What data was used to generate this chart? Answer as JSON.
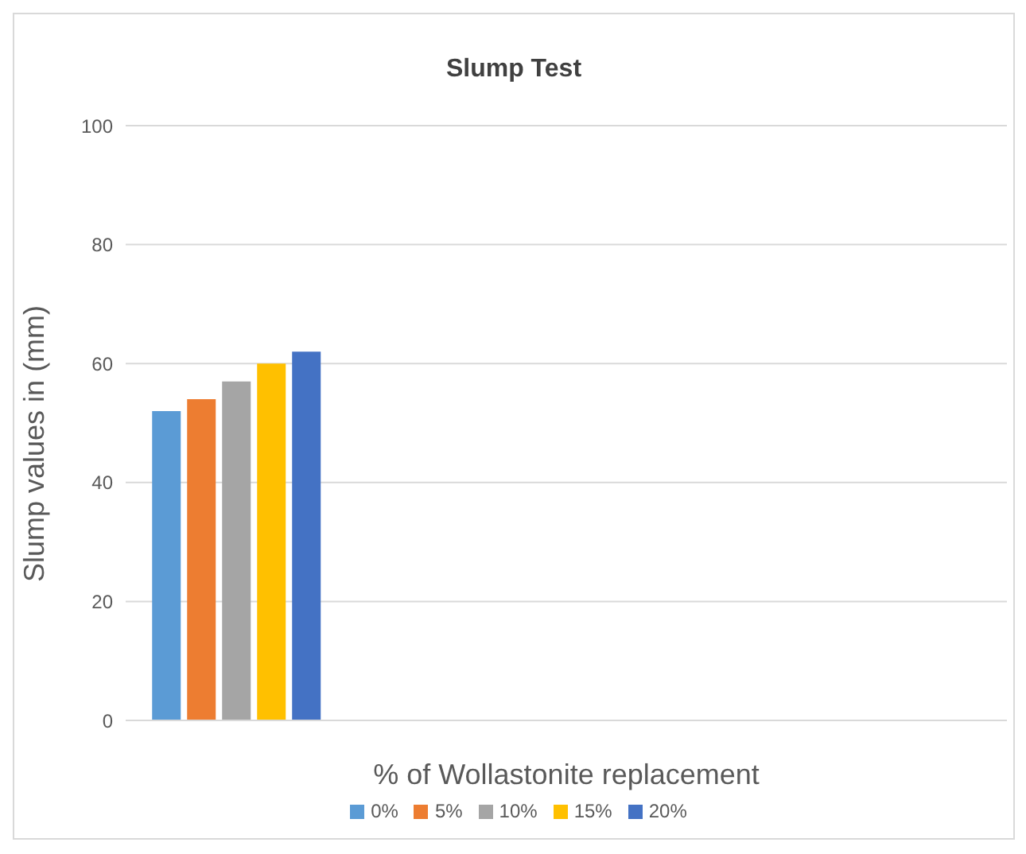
{
  "chart_data": {
    "type": "bar",
    "title": "Slump Test",
    "xlabel": "% of Wollastonite replacement",
    "ylabel": "Slump values in (mm)",
    "categories": [
      null,
      null,
      null,
      null
    ],
    "series": [
      {
        "name": "0%",
        "color": "#5b9bd5",
        "values": [
          52,
          null,
          null,
          null
        ]
      },
      {
        "name": "5%",
        "color": "#ed7d31",
        "values": [
          54,
          null,
          null,
          null
        ]
      },
      {
        "name": "10%",
        "color": "#a5a5a5",
        "values": [
          57,
          null,
          null,
          null
        ]
      },
      {
        "name": "15%",
        "color": "#ffc000",
        "values": [
          60,
          null,
          null,
          null
        ]
      },
      {
        "name": "20%",
        "color": "#4472c4",
        "values": [
          62,
          null,
          null,
          null
        ]
      }
    ],
    "ylim": [
      0,
      100
    ],
    "yticks": [
      0,
      20,
      40,
      60,
      80,
      100
    ],
    "grid": "y",
    "legend": "bottom"
  }
}
